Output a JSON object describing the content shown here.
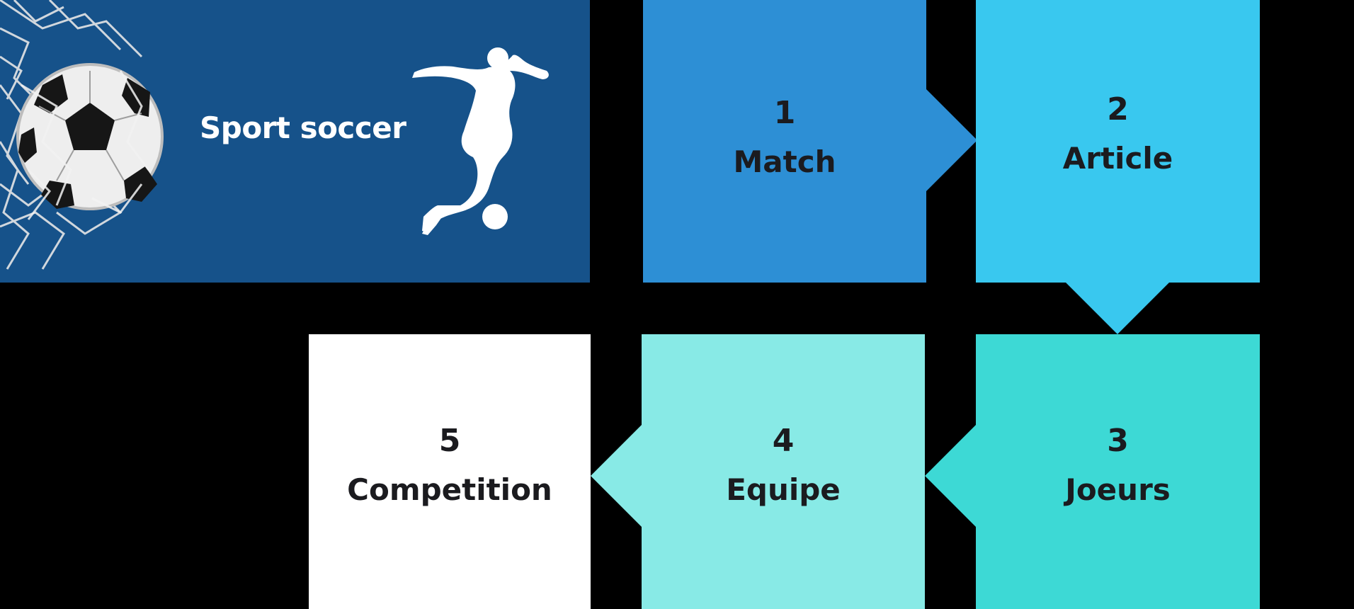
{
  "hero": {
    "title": "Sport soccer",
    "background": "#16528a",
    "illustrations": [
      "soccer-ball-in-net",
      "player-kicking-silhouette"
    ]
  },
  "steps": [
    {
      "number": "1",
      "label": "Match",
      "color": "#2d8fd5",
      "pointer": "right"
    },
    {
      "number": "2",
      "label": "Article",
      "color": "#39c8ef",
      "pointer": "down"
    },
    {
      "number": "3",
      "label": "Joeurs",
      "color": "#3dd9d5",
      "pointer": "left"
    },
    {
      "number": "4",
      "label": "Equipe",
      "color": "#88eae6",
      "pointer": "left"
    },
    {
      "number": "5",
      "label": "Competition",
      "color": "#ffffff",
      "pointer": "none"
    }
  ]
}
